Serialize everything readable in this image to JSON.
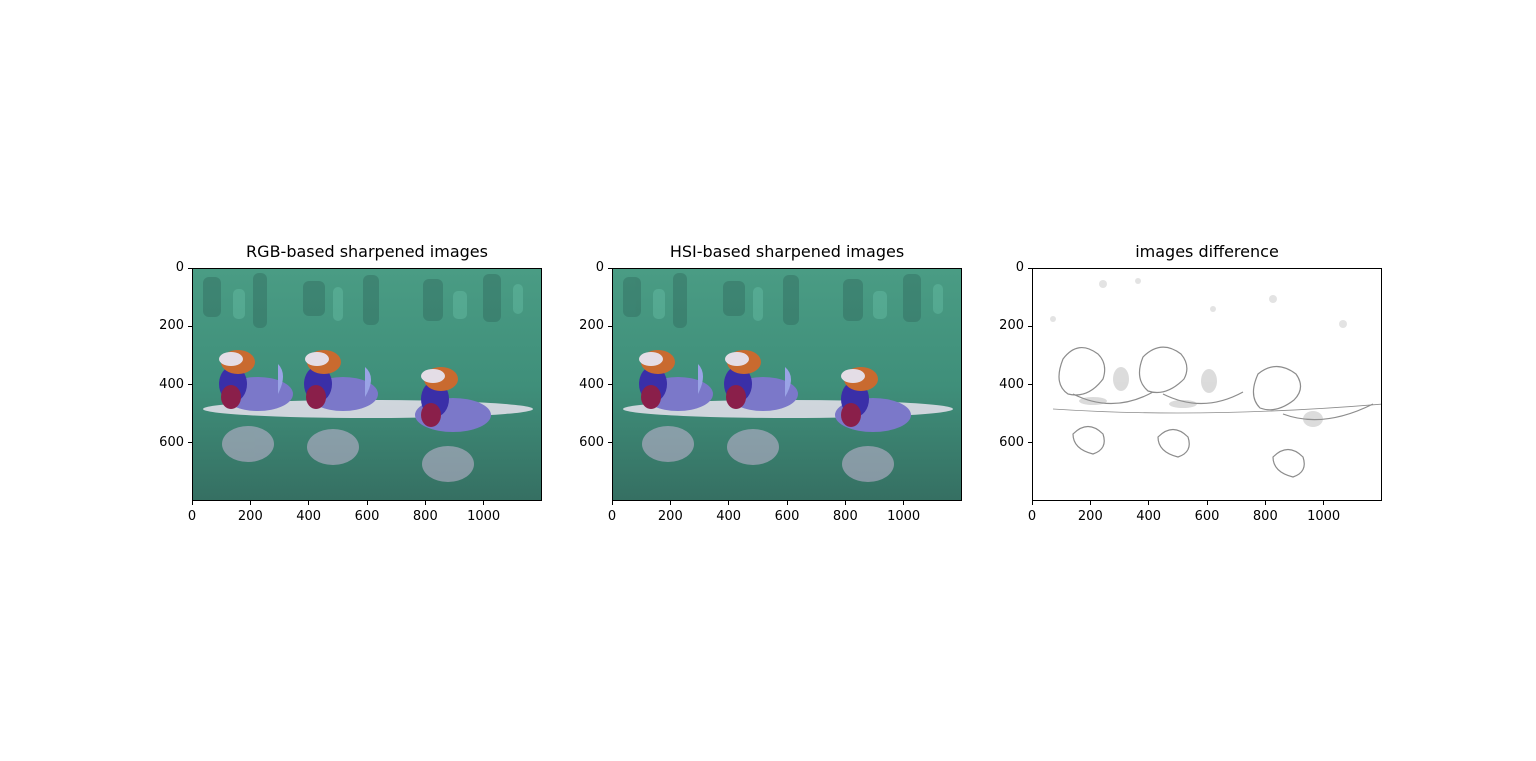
{
  "figure": {
    "panels": [
      {
        "title": "RGB-based sharpened images",
        "kind": "color-photo",
        "x_ticks": [
          "0",
          "200",
          "400",
          "600",
          "800",
          "1000"
        ],
        "y_ticks": [
          "0",
          "200",
          "400",
          "600"
        ]
      },
      {
        "title": "HSI-based sharpened images",
        "kind": "color-photo",
        "x_ticks": [
          "0",
          "200",
          "400",
          "600",
          "800",
          "1000"
        ],
        "y_ticks": [
          "0",
          "200",
          "400",
          "600"
        ]
      },
      {
        "title": "images difference",
        "kind": "grayscale-difference",
        "x_ticks": [
          "0",
          "200",
          "400",
          "600",
          "800",
          "1000"
        ],
        "y_ticks": [
          "0",
          "200",
          "400",
          "600"
        ]
      }
    ],
    "image_extent": {
      "width": 1200,
      "height": 800
    },
    "colors": {
      "water": "#3f8f7a",
      "water_dark": "#2b6a5a",
      "duck_body": "#7b78c9",
      "duck_head": "#3a2fa8",
      "duck_crest": "#c96a2f",
      "duck_breast": "#8a1f4a",
      "diff_background": "#ffffff",
      "diff_edges": "#6a6a6a"
    }
  }
}
